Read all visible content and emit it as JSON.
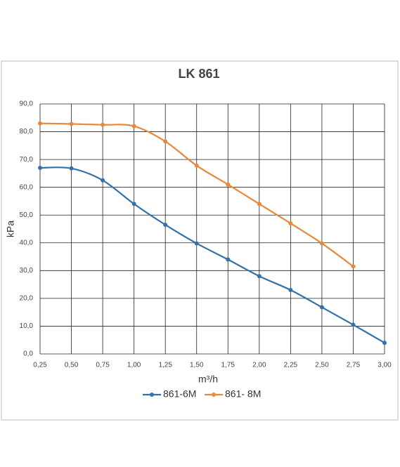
{
  "chart_data": {
    "type": "line",
    "title": "LK 861",
    "x_label": "m³/h",
    "y_label": "kPa",
    "x": [
      0.25,
      0.5,
      0.75,
      1.0,
      1.25,
      1.5,
      1.75,
      2.0,
      2.25,
      2.5,
      2.75,
      3.0
    ],
    "series": [
      {
        "name": "861-6M",
        "color": "#3271ab",
        "values": [
          67,
          66.8,
          62.5,
          54,
          46.5,
          39.8,
          34,
          28,
          23,
          16.8,
          10.5,
          4
        ]
      },
      {
        "name": "861- 8M",
        "color": "#e8883a",
        "values": [
          83,
          82.8,
          82.5,
          82,
          76.5,
          67.8,
          61,
          54,
          47,
          39.8,
          31.5,
          null
        ]
      }
    ],
    "xlim": [
      0.25,
      3.0
    ],
    "xticks": [
      {
        "value": 0.25,
        "label": "0,25"
      },
      {
        "value": 0.5,
        "label": "0,50"
      },
      {
        "value": 0.75,
        "label": "0,75"
      },
      {
        "value": 1.0,
        "label": "1,00"
      },
      {
        "value": 1.25,
        "label": "1,25"
      },
      {
        "value": 1.5,
        "label": "1,50"
      },
      {
        "value": 1.75,
        "label": "1,75"
      },
      {
        "value": 2.0,
        "label": "2,00"
      },
      {
        "value": 2.25,
        "label": "2,25"
      },
      {
        "value": 2.5,
        "label": "2,50"
      },
      {
        "value": 2.75,
        "label": "2,75"
      },
      {
        "value": 3.0,
        "label": "3,00"
      }
    ],
    "ylim": [
      0,
      90
    ],
    "yticks": [
      {
        "value": 0,
        "label": "0,0"
      },
      {
        "value": 10,
        "label": "10,0"
      },
      {
        "value": 20,
        "label": "20,0"
      },
      {
        "value": 30,
        "label": "30,0"
      },
      {
        "value": 40,
        "label": "40,0"
      },
      {
        "value": 50,
        "label": "50,0"
      },
      {
        "value": 60,
        "label": "60,0"
      },
      {
        "value": 70,
        "label": "70,0"
      },
      {
        "value": 80,
        "label": "80,0"
      },
      {
        "value": 90,
        "label": "90,0"
      }
    ],
    "grid": true,
    "legend": "bottom"
  }
}
